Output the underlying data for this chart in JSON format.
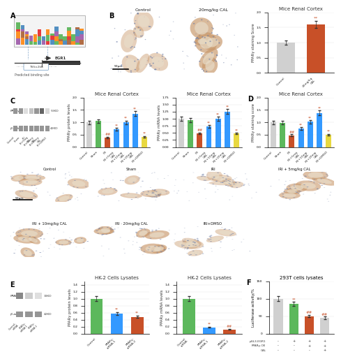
{
  "bg_color": "#f5f5f5",
  "panel_labels": [
    "A",
    "B",
    "C",
    "D",
    "E",
    "F"
  ],
  "bar_B": {
    "title": "Mice Renal Cortex",
    "categories": [
      "Control",
      "20mg/kg\nCAL"
    ],
    "values": [
      1.0,
      1.6
    ],
    "colors": [
      "#d0d0d0",
      "#c85028"
    ],
    "ylabel": "PPARγ staining Score",
    "ylim": [
      0,
      2.0
    ],
    "yticks": [
      0.0,
      0.5,
      1.0,
      1.5,
      2.0
    ]
  },
  "bar_C1": {
    "title": "Mice Renal Cortex",
    "categories": [
      "Control",
      "Sham",
      "IRI",
      "IRI+5mg\nCAL",
      "IRI+10mg\nCAL",
      "IRI+20mg\nCAL",
      "IRI+DMSO"
    ],
    "values": [
      1.0,
      1.05,
      0.38,
      0.72,
      1.0,
      1.35,
      0.42
    ],
    "colors": [
      "#d0d0d0",
      "#5cb85c",
      "#c85028",
      "#3399ff",
      "#3399ff",
      "#3399ff",
      "#e8d840"
    ],
    "ylabel": "PPARγ protein levels",
    "ylim": [
      0,
      2.0
    ]
  },
  "bar_C2": {
    "title": "Mice Renal Cortex",
    "categories": [
      "Control",
      "Sham",
      "IRI",
      "IRI+5mg\nCAL",
      "IRI+10mg\nCAL",
      "IRI+20mg\nCAL",
      "IRI+DMSO"
    ],
    "values": [
      1.0,
      0.95,
      0.48,
      0.72,
      1.0,
      1.25,
      0.48
    ],
    "colors": [
      "#d0d0d0",
      "#5cb85c",
      "#c85028",
      "#3399ff",
      "#3399ff",
      "#3399ff",
      "#e8d840"
    ],
    "ylabel": "PPARγ mRNA levels",
    "ylim": [
      0,
      1.75
    ]
  },
  "bar_D": {
    "title": "Mice Renal Cortex",
    "categories": [
      "Control",
      "Sham",
      "IRI",
      "IRI+5mg\nCAL",
      "IRI+10mg\nCAL",
      "IRI+20mg\nCAL",
      "IRI+DMSO"
    ],
    "values": [
      1.0,
      0.98,
      0.48,
      0.75,
      1.02,
      1.38,
      0.5
    ],
    "colors": [
      "#d0d0d0",
      "#5cb85c",
      "#c85028",
      "#3399ff",
      "#3399ff",
      "#3399ff",
      "#e8d840"
    ],
    "ylabel": "PPARγ staining score",
    "ylim": [
      0,
      2.0
    ]
  },
  "bar_E1": {
    "title": "HK-2 Cells Lysates",
    "categories": [
      "Control",
      "PPARγ-\nsiRNA-1",
      "PPARγ-\nsiRNA-2"
    ],
    "values": [
      1.0,
      0.58,
      0.48
    ],
    "colors": [
      "#5cb85c",
      "#3399ff",
      "#c85028"
    ],
    "ylabel": "PPARγ protein levels",
    "ylim": [
      0,
      1.5
    ]
  },
  "bar_E2": {
    "title": "HK-2 Cells Lysates",
    "categories": [
      "Control\nsiRNA",
      "PPARγ-\nsiRNA-1",
      "PPARγ-\nsiRNA-2"
    ],
    "values": [
      1.0,
      0.18,
      0.12
    ],
    "colors": [
      "#5cb85c",
      "#3399ff",
      "#c85028"
    ],
    "ylabel": "PPARγ mRNA levels",
    "ylim": [
      0,
      1.5
    ]
  },
  "bar_F": {
    "title": "293T cells lysates",
    "values": [
      100,
      85,
      50,
      45
    ],
    "colors": [
      "#d0d0d0",
      "#5cb85c",
      "#c85028",
      "#d0d0d0"
    ],
    "ylabel": "Luciferase activity/%",
    "ylim": [
      0,
      150
    ],
    "yticks": [
      0,
      50,
      100,
      150
    ],
    "bottom_rows": [
      [
        "pGL3-EGR1",
        "-",
        "+",
        "+",
        "+"
      ],
      [
        "PPARγ-OE",
        "-",
        "-",
        "+",
        "+"
      ],
      [
        "CAL",
        "-",
        "-",
        "-",
        "+"
      ]
    ]
  },
  "micro_top_labels": [
    "Control",
    "Sham",
    "IRI",
    "IRI + 5mg/kg CAL"
  ],
  "micro_bot_labels": [
    "IRI + 10mg/kg CAL",
    "IRI · 20mg/kg CAL",
    "IRI+DMSO"
  ],
  "tissue_bg": "#d4b896",
  "tissue_stain": "#c8976a",
  "nuclei_color": "#8090b0",
  "wb_band_dark": 0.25,
  "wb_band_mid": 0.45,
  "wb_band_light": 0.62
}
